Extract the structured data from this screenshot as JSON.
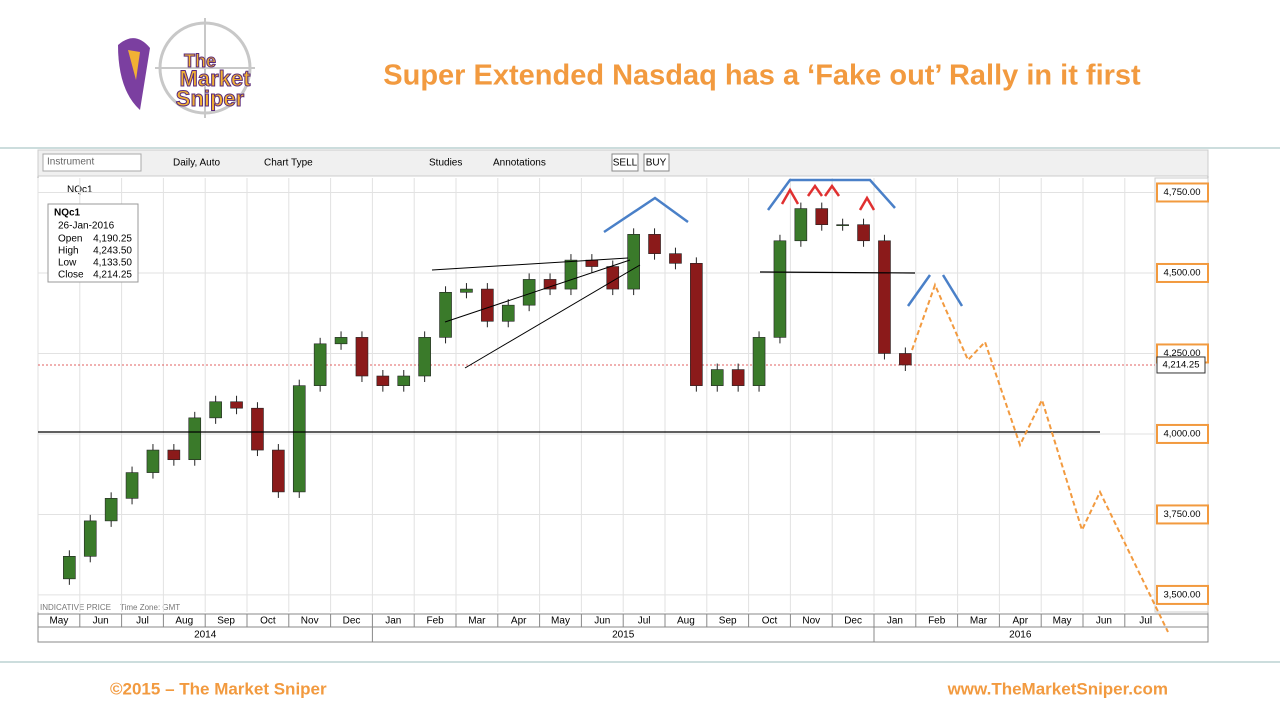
{
  "header": {
    "title": "Super Extended Nasdaq has a ‘Fake out’ Rally in it first",
    "logo": [
      "The",
      "Market",
      "Sniper"
    ]
  },
  "toolbar": {
    "instrument": "Instrument",
    "interval": "Daily, Auto",
    "chart_type": "Chart Type",
    "studies": "Studies",
    "annotations": "Annotations",
    "sell": "SELL",
    "buy": "BUY"
  },
  "chart_data": {
    "type": "candlestick",
    "symbol": "NQc1",
    "info": {
      "symbol": "NQc1",
      "date": "26-Jan-2016",
      "rows": [
        [
          "Open",
          "4,190.25"
        ],
        [
          "High",
          "4,243.50"
        ],
        [
          "Low",
          "4,133.50"
        ],
        [
          "Close",
          "4,214.25"
        ]
      ]
    },
    "ylim": [
      3447,
      4795
    ],
    "yticks": [
      {
        "value": 3500,
        "label": "3,500.00"
      },
      {
        "value": 3750,
        "label": "3,750.00"
      },
      {
        "value": 4000,
        "label": "4,000.00"
      },
      {
        "value": 4250,
        "label": "4,250.00"
      },
      {
        "value": 4500,
        "label": "4,500.00"
      },
      {
        "value": 4750,
        "label": "4,750.00"
      }
    ],
    "last": {
      "value": 4214.25,
      "label": "4,214.25"
    },
    "years": [
      {
        "label": "2014",
        "months": [
          "May",
          "Jun",
          "Jul",
          "Aug",
          "Sep",
          "Oct",
          "Nov",
          "Dec"
        ]
      },
      {
        "label": "2015",
        "months": [
          "Jan",
          "Feb",
          "Mar",
          "Apr",
          "May",
          "Jun",
          "Jul",
          "Aug",
          "Sep",
          "Oct",
          "Nov",
          "Dec"
        ]
      },
      {
        "label": "2016",
        "months": [
          "Jan",
          "Feb",
          "Mar",
          "Apr",
          "May",
          "Jun",
          "Jul"
        ]
      }
    ],
    "series": [
      {
        "up_color": "#3a7a2a",
        "down_color": "#8b1a1a",
        "values": [
          3550,
          3620,
          3730,
          3800,
          3880,
          3950,
          3920,
          4050,
          4100,
          4080,
          3950,
          3820,
          4150,
          4280,
          4300,
          4180,
          4150,
          4180,
          4300,
          4440,
          4450,
          4350,
          4400,
          4480,
          4450,
          4540,
          4520,
          4450,
          4620,
          4560,
          4530,
          4150,
          4200,
          4150,
          4300,
          4600,
          4700,
          4650,
          4650,
          4600,
          4250,
          4214.25
        ]
      }
    ],
    "note": "INDICATIVE PRICE",
    "timezone": "Time Zone: GMT"
  },
  "footer": {
    "copyright": "©2015 – The Market Sniper",
    "url": "www.TheMarketSniper.com"
  }
}
